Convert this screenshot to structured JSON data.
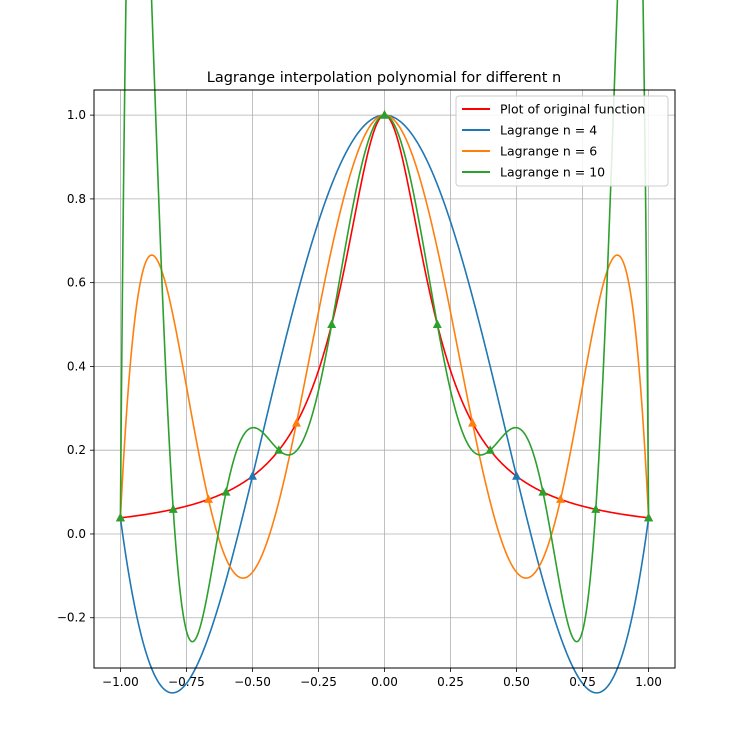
{
  "chart_data": {
    "type": "line",
    "title": "Lagrange interpolation polynomial for different n",
    "xlabel": "",
    "ylabel": "",
    "xlim": [
      -1.1,
      1.1
    ],
    "ylim": [
      -0.32,
      1.06
    ],
    "xticks": [
      -1.0,
      -0.75,
      -0.5,
      -0.25,
      0.0,
      0.25,
      0.5,
      0.75,
      1.0
    ],
    "xtick_labels": [
      "−1.00",
      "−0.75",
      "−0.50",
      "−0.25",
      "0.00",
      "0.25",
      "0.50",
      "0.75",
      "1.00"
    ],
    "yticks": [
      -0.2,
      0.0,
      0.2,
      0.4,
      0.6,
      0.8,
      1.0
    ],
    "ytick_labels": [
      "−0.2",
      "0.0",
      "0.2",
      "0.4",
      "0.6",
      "0.8",
      "1.0"
    ],
    "grid": true,
    "legend_position": "top-right",
    "function": "1/(1+25x^2)",
    "series": [
      {
        "name": "Plot of original function",
        "color": "#ff0000",
        "n": 0
      },
      {
        "name": "Lagrange n = 4",
        "color": "#1f77b4",
        "n": 4
      },
      {
        "name": "Lagrange n = 6",
        "color": "#ff7f0e",
        "n": 6
      },
      {
        "name": "Lagrange n = 10",
        "color": "#2ca02c",
        "n": 10
      }
    ],
    "node_markers": "triangle-up"
  }
}
